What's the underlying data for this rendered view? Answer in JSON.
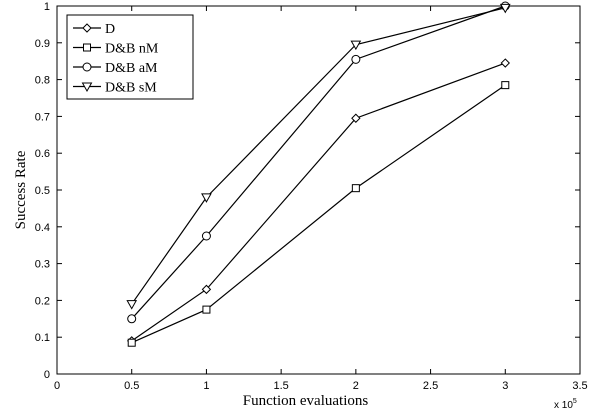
{
  "chart_data": {
    "type": "line",
    "xlabel": "Function evaluations",
    "ylabel": "Success Rate",
    "x_multiplier": {
      "base": "x 10",
      "exponent": "5"
    },
    "xlim": [
      0,
      3.5
    ],
    "ylim": [
      0,
      1
    ],
    "x_ticks": [
      "0",
      "0.5",
      "1",
      "1.5",
      "2",
      "2.5",
      "3",
      "3.5"
    ],
    "y_ticks": [
      "0",
      "0.1",
      "0.2",
      "0.3",
      "0.4",
      "0.5",
      "0.6",
      "0.7",
      "0.8",
      "0.9",
      "1"
    ],
    "grid": false,
    "legend_position": "top-left",
    "x": [
      0.5,
      1,
      2,
      3
    ],
    "series": [
      {
        "name": "D",
        "marker": "diamond",
        "values": [
          0.09,
          0.23,
          0.695,
          0.845
        ]
      },
      {
        "name": "D&B nM",
        "marker": "square",
        "values": [
          0.085,
          0.175,
          0.505,
          0.785
        ]
      },
      {
        "name": "D&B aM",
        "marker": "circle",
        "values": [
          0.15,
          0.375,
          0.855,
          1.0
        ]
      },
      {
        "name": "D&B sM",
        "marker": "triangle-down",
        "values": [
          0.19,
          0.48,
          0.895,
          0.995
        ]
      }
    ],
    "colors": {
      "line": "#000000",
      "background": "#ffffff"
    }
  }
}
